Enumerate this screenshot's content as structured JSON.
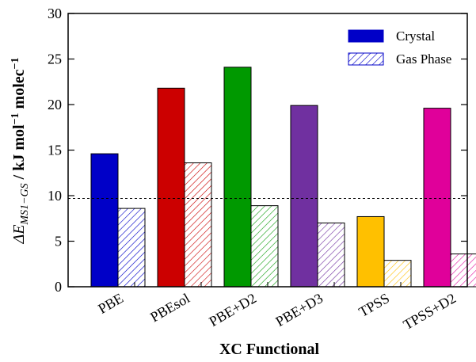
{
  "chart_data": {
    "type": "bar",
    "categories": [
      "PBE",
      "PBEsol",
      "PBE+D2",
      "PBE+D3",
      "TPSS",
      "TPSS+D2"
    ],
    "series": [
      {
        "name": "Crystal",
        "values": [
          14.6,
          21.8,
          24.1,
          19.9,
          7.7,
          19.6
        ]
      },
      {
        "name": "Gas Phase",
        "values": [
          8.6,
          13.6,
          8.9,
          7.0,
          2.9,
          3.6
        ]
      }
    ],
    "bar_colors": [
      "#0000c8",
      "#cc0000",
      "#009900",
      "#7030a0",
      "#ffc000",
      "#e0009a"
    ],
    "reference_line": 9.7,
    "xlabel": "XC Functional",
    "ylabel": {
      "prefix": "ΔE",
      "subscript": "MS1−GS",
      "suffix": " / kJ mol",
      "sup1": "−1",
      "suffix2": " molec",
      "sup2": "−1"
    },
    "ylim": [
      0,
      30
    ],
    "yticks": [
      0,
      5,
      10,
      15,
      20,
      25,
      30
    ],
    "legend_position": "top-right",
    "grid": false
  }
}
